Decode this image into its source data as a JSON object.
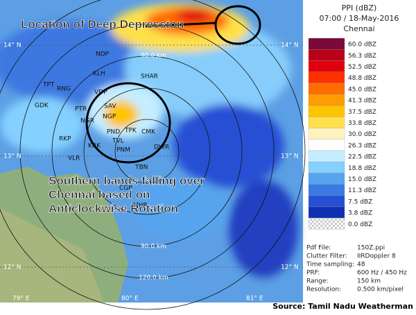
{
  "header": {
    "title": "PPI (dBZ)",
    "time": "07:00 / 18-May-2016",
    "station": "Chennai"
  },
  "legend": [
    {
      "label": "60.0 dBZ",
      "color": "#7a0a3a"
    },
    {
      "label": "56.3 dBZ",
      "color": "#b8001a"
    },
    {
      "label": "52.5 dBZ",
      "color": "#e0000c"
    },
    {
      "label": "48.8 dBZ",
      "color": "#ff3000"
    },
    {
      "label": "45.0 dBZ",
      "color": "#ff6c00"
    },
    {
      "label": "41.3 dBZ",
      "color": "#ff9c00"
    },
    {
      "label": "37.5 dBZ",
      "color": "#ffc400"
    },
    {
      "label": "33.8 dBZ",
      "color": "#ffe04a"
    },
    {
      "label": "30.0 dBZ",
      "color": "#fff2c0"
    },
    {
      "label": "26.3 dBZ",
      "color": "#ffffff"
    },
    {
      "label": "22.5 dBZ",
      "color": "#c4eeff"
    },
    {
      "label": "18.8 dBZ",
      "color": "#84d0ff"
    },
    {
      "label": "15.0 dBZ",
      "color": "#56a4ee"
    },
    {
      "label": "11.3 dBZ",
      "color": "#3a7ae4"
    },
    {
      "label": "7.5 dBZ",
      "color": "#2650d4"
    },
    {
      "label": "3.8 dBZ",
      "color": "#1030b4"
    },
    {
      "label": "0.0 dBZ",
      "color": "#e8e8e8"
    }
  ],
  "info": [
    {
      "key": "Pdf File:",
      "value": "150Z.ppi"
    },
    {
      "key": "Clutter Filter:",
      "value": "IIRDoppler 8"
    },
    {
      "key": "Time sampling:",
      "value": "48"
    },
    {
      "key": "PRF:",
      "value": "600 Hz / 450 Hz"
    },
    {
      "key": "Range:",
      "value": "150 km"
    },
    {
      "key": "Resolution:",
      "value": "0.500 km/pixel"
    }
  ],
  "places": [
    "NDP",
    "KLH",
    "SHAR",
    "TPT",
    "RNG",
    "VDP",
    "GDK",
    "PTR",
    "SAV",
    "NGR",
    "NGP",
    "PND",
    "TPK",
    "CMK",
    "TVL",
    "PNM",
    "KRK",
    "RKP",
    "VLR",
    "DWR",
    "TBN",
    "CGP",
    "MHR"
  ],
  "rings": [
    "90.0 km",
    "90.0 km",
    "120.0 km"
  ],
  "grid_labels": [
    "14° N",
    "13° N",
    "12° N",
    "79° E",
    "80° E",
    "81° E",
    "14° N",
    "13° N",
    "12° N"
  ],
  "annotations": [
    "Location of Deep Depression",
    "Southern bands falling over Chennai based on Anticlockwise Rotation"
  ],
  "source": "Source: Tamil Nadu Weatherman"
}
